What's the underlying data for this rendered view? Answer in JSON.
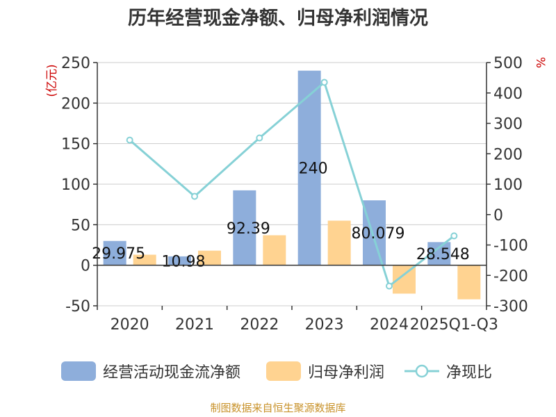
{
  "title": "历年经营现金净额、归母净利润情况",
  "source": "制图数据来自恒生聚源数据库",
  "colors": {
    "cash": "#8eaedb",
    "profit": "#ffd391",
    "ratio": "#86d1d6",
    "left_unit": "#cc0000",
    "right_unit": "#cc0000",
    "grid": "#cccccc",
    "axis": "#333333"
  },
  "chart_data": {
    "type": "bar",
    "categories": [
      "2020",
      "2021",
      "2022",
      "2023",
      "2024",
      "2025Q1-Q3"
    ],
    "series": [
      {
        "name": "经营活动现金流净额",
        "type": "bar",
        "axis": "left",
        "values": [
          29.975,
          10.98,
          92.39,
          240,
          80.079,
          28.548
        ],
        "labels": [
          "29.975",
          "10.98",
          "92.39",
          "240",
          "80.079",
          "28.548"
        ]
      },
      {
        "name": "归母净利润",
        "type": "bar",
        "axis": "left",
        "values": [
          13,
          18,
          37,
          55,
          -35,
          -42
        ]
      },
      {
        "name": "净现比",
        "type": "line",
        "axis": "right",
        "values": [
          245,
          60,
          252,
          435,
          -235,
          -70
        ]
      }
    ],
    "left_axis": {
      "unit": "(亿元)",
      "min": -50,
      "max": 250,
      "ticks": [
        250,
        200,
        150,
        100,
        50,
        0,
        -50
      ]
    },
    "right_axis": {
      "unit": "%",
      "min": -300,
      "max": 500,
      "ticks": [
        500,
        400,
        300,
        200,
        100,
        0,
        -100,
        -200,
        -300
      ]
    },
    "grid": true,
    "legend_position": "bottom"
  }
}
